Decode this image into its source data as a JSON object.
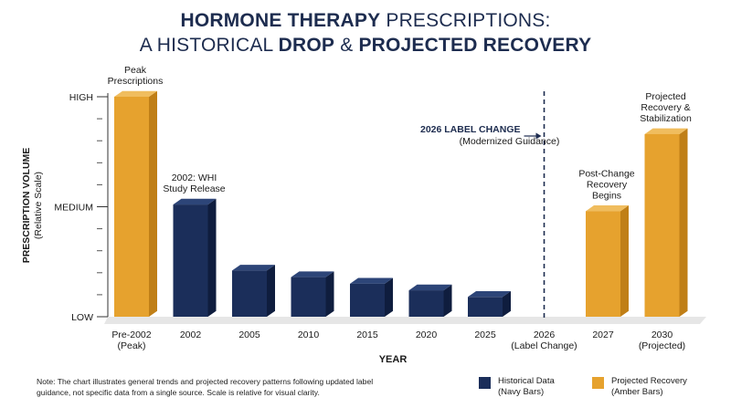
{
  "title": {
    "line1_bold": "HORMONE THERAPY",
    "line1_rest": " PRESCRIPTIONS:",
    "line2_pre": "A HISTORICAL ",
    "line2_bold1": "DROP",
    "line2_mid": " & ",
    "line2_bold2": "PROJECTED RECOVERY"
  },
  "axes": {
    "ylabel_line1": "PRESCRIPTION VOLUME",
    "ylabel_line2": "(Relative Scale)",
    "xlabel": "YEAR",
    "ytick_labels": [
      "HIGH",
      "MEDIUM",
      "LOW"
    ]
  },
  "colors": {
    "historical": "#1b2e5a",
    "projected": "#e6a22e",
    "title": "#1d2c4f"
  },
  "chart_data": {
    "type": "bar",
    "title": "HORMONE THERAPY PRESCRIPTIONS: A HISTORICAL DROP & PROJECTED RECOVERY",
    "xlabel": "YEAR",
    "ylabel": "PRESCRIPTION VOLUME (Relative Scale)",
    "ylim": [
      0,
      10
    ],
    "ytick_values": [
      10,
      5,
      0
    ],
    "ytick_labels": [
      "HIGH",
      "MEDIUM",
      "LOW"
    ],
    "minor_ticks": [
      1,
      2,
      3,
      4,
      6,
      7,
      8,
      9
    ],
    "categories": [
      [
        "Pre-2002",
        "(Peak)"
      ],
      [
        "2002"
      ],
      [
        "2005"
      ],
      [
        "2010"
      ],
      [
        "2015"
      ],
      [
        "2020"
      ],
      [
        "2025"
      ],
      [
        "2026",
        "(Label Change)"
      ],
      [
        "2027"
      ],
      [
        "2030",
        "(Projected)"
      ]
    ],
    "values": [
      10.0,
      5.1,
      2.1,
      1.8,
      1.5,
      1.2,
      0.9,
      null,
      4.8,
      8.3
    ],
    "groups": [
      "historical-peak",
      "historical",
      "historical",
      "historical",
      "historical",
      "historical",
      "historical",
      "none",
      "projected",
      "projected"
    ],
    "series": [
      {
        "name": "Historical Data",
        "note": "(Navy Bars)"
      },
      {
        "name": "Projected Recovery",
        "note": "(Amber Bars)"
      }
    ],
    "annotations": [
      {
        "index": 0,
        "lines": [
          "Peak",
          "Prescriptions"
        ]
      },
      {
        "index": 1,
        "lines": [
          "2002: WHI",
          "Study Release"
        ]
      },
      {
        "index": 8,
        "lines": [
          "Post-Change",
          "Recovery",
          "Begins"
        ]
      },
      {
        "index": 9,
        "lines": [
          "Projected",
          "Recovery &",
          "Stabilization"
        ]
      }
    ],
    "label_change_annotation": {
      "index": 7,
      "bold": "2026 LABEL CHANGE",
      "sub": "(Modernized Guidance)"
    },
    "grid": false,
    "legend_position": "bottom-right"
  },
  "note": "Note: The chart illustrates general trends and projected recovery patterns following updated label guidance, not specific data from a single source. Scale is relative for visual clarity."
}
